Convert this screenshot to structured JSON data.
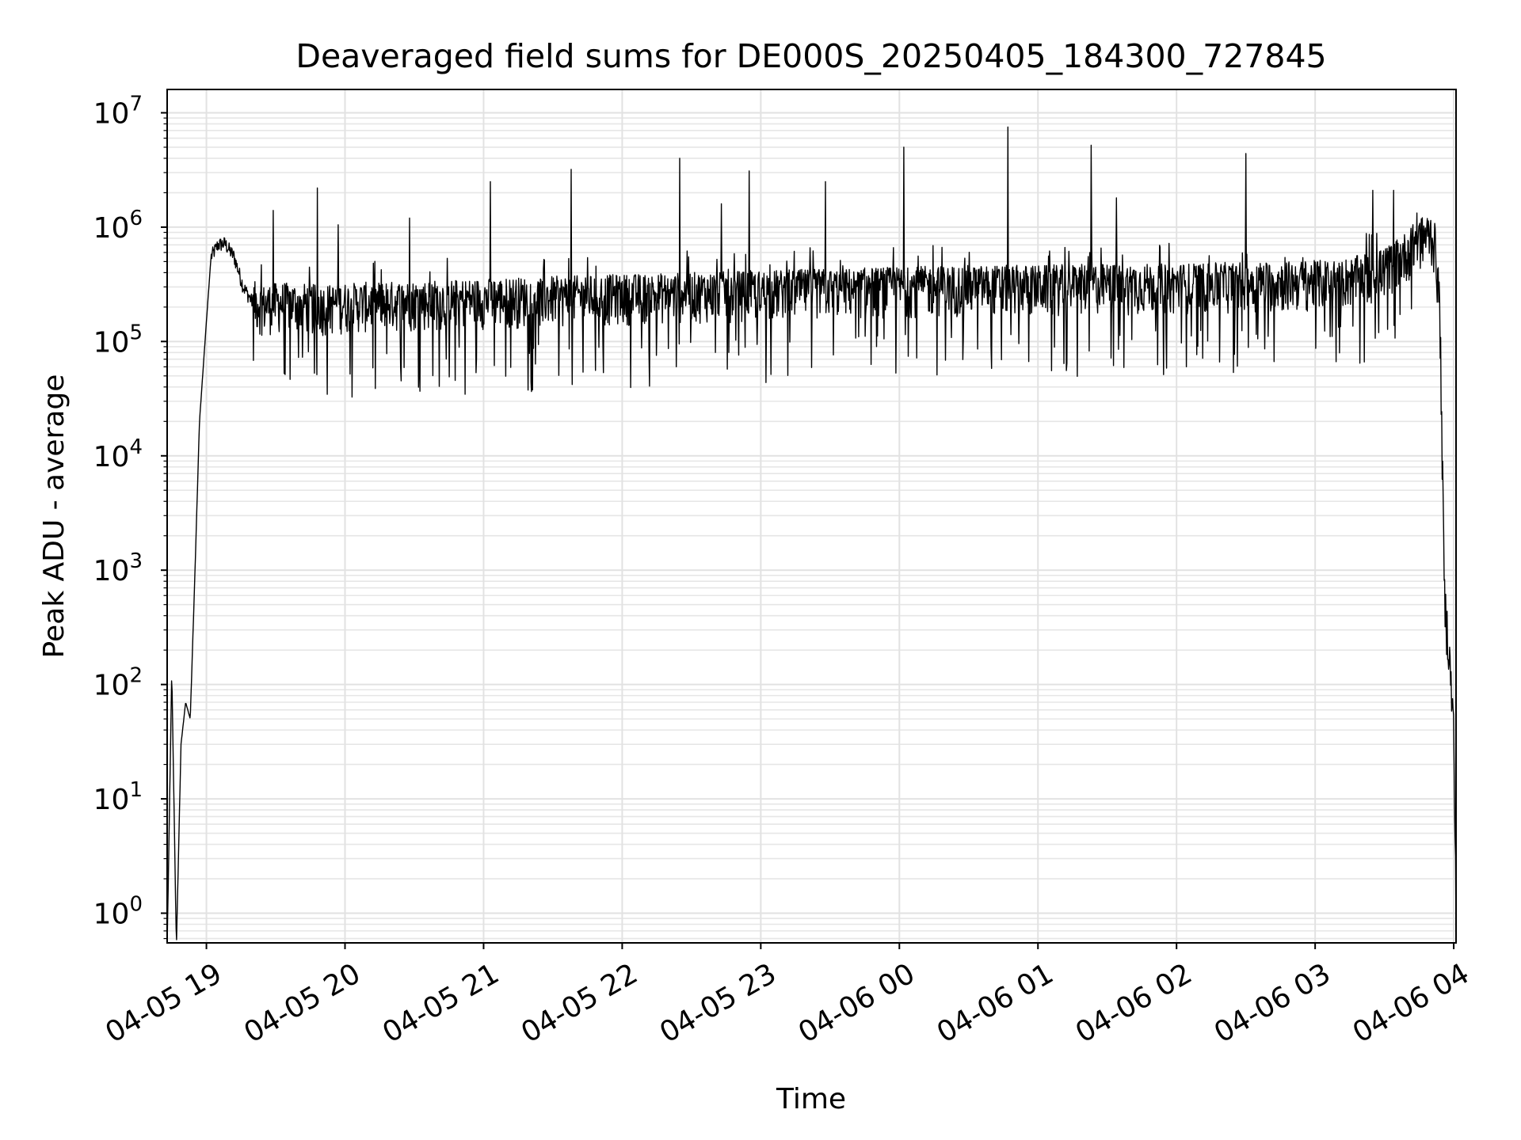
{
  "chart_data": {
    "type": "line",
    "title": "Deaveraged field sums for DE000S_20250405_184300_727845",
    "xlabel": "Time",
    "ylabel": "Peak ADU - average",
    "yscale": "log",
    "grid": "both",
    "colors": {
      "line": "#000000",
      "grid": "#e2e2e2"
    },
    "x_tick_labels": [
      "04-05 19",
      "04-05 20",
      "04-05 21",
      "04-05 22",
      "04-05 23",
      "04-06 00",
      "04-06 01",
      "04-06 02",
      "04-06 03",
      "04-06 04"
    ],
    "y_tick_exponents": [
      0,
      1,
      2,
      3,
      4,
      5,
      6,
      7
    ],
    "y_tick_base": "10",
    "xlim": [
      "2025-04-05 18:43",
      "2025-04-06 04:01"
    ],
    "ylim": [
      0.55,
      16000000
    ],
    "series": [
      {
        "x": [
          "2025-04-05 18:43",
          "2025-04-05 18:45",
          "2025-04-05 18:47",
          "2025-04-05 18:49",
          "2025-04-05 18:51",
          "2025-04-05 18:53",
          "2025-04-05 18:55",
          "2025-04-05 18:57",
          "2025-04-05 19:00",
          "2025-04-05 19:02",
          "2025-04-05 19:05",
          "2025-04-05 19:08",
          "2025-04-05 19:12",
          "2025-04-05 19:16",
          "2025-04-05 19:20",
          "2025-04-05 19:25",
          "2025-04-05 19:30",
          "2025-04-05 19:40",
          "2025-04-05 19:50",
          "2025-04-05 20:00",
          "2025-04-05 20:30",
          "2025-04-05 21:00",
          "2025-04-05 21:30",
          "2025-04-05 22:00",
          "2025-04-05 22:30",
          "2025-04-05 23:00",
          "2025-04-05 23:30",
          "2025-04-06 00:00",
          "2025-04-06 00:30",
          "2025-04-06 01:00",
          "2025-04-06 01:30",
          "2025-04-06 02:00",
          "2025-04-06 02:30",
          "2025-04-06 03:00",
          "2025-04-06 03:15",
          "2025-04-06 03:30",
          "2025-04-06 03:40",
          "2025-04-06 03:45",
          "2025-04-06 03:50",
          "2025-04-06 03:52",
          "2025-04-06 03:54",
          "2025-04-06 03:56",
          "2025-04-06 03:58",
          "2025-04-06 04:00",
          "2025-04-06 04:01"
        ],
        "y": [
          0.5,
          130,
          0.5,
          30,
          70,
          50,
          900,
          20000,
          150000,
          550000,
          700000,
          720000,
          550000,
          300000,
          220000,
          200000,
          210000,
          210000,
          200000,
          210000,
          220000,
          230000,
          240000,
          250000,
          260000,
          270000,
          280000,
          290000,
          300000,
          300000,
          310000,
          310000,
          320000,
          330000,
          350000,
          420000,
          600000,
          800000,
          900000,
          700000,
          200000,
          600,
          200,
          40,
          1
        ]
      }
    ],
    "spikes": [
      {
        "x": "2025-04-05 19:29",
        "y": 1400000
      },
      {
        "x": "2025-04-05 19:48",
        "y": 2200000
      },
      {
        "x": "2025-04-05 19:57",
        "y": 1050000
      },
      {
        "x": "2025-04-05 20:28",
        "y": 1200000
      },
      {
        "x": "2025-04-05 21:03",
        "y": 2500000
      },
      {
        "x": "2025-04-05 21:38",
        "y": 3200000
      },
      {
        "x": "2025-04-05 22:25",
        "y": 4000000
      },
      {
        "x": "2025-04-05 22:43",
        "y": 1600000
      },
      {
        "x": "2025-04-05 22:55",
        "y": 3100000
      },
      {
        "x": "2025-04-05 23:28",
        "y": 2500000
      },
      {
        "x": "2025-04-06 00:02",
        "y": 5000000
      },
      {
        "x": "2025-04-06 00:47",
        "y": 7500000
      },
      {
        "x": "2025-04-06 01:23",
        "y": 5200000
      },
      {
        "x": "2025-04-06 01:34",
        "y": 1800000
      },
      {
        "x": "2025-04-06 02:30",
        "y": 4400000
      },
      {
        "x": "2025-04-06 03:25",
        "y": 2100000
      },
      {
        "x": "2025-04-06 03:34",
        "y": 2100000
      }
    ]
  }
}
